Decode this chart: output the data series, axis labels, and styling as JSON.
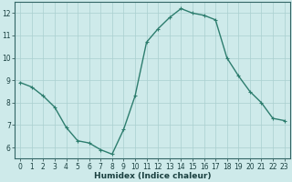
{
  "x": [
    0,
    1,
    2,
    3,
    4,
    5,
    6,
    7,
    8,
    9,
    10,
    11,
    12,
    13,
    14,
    15,
    16,
    17,
    18,
    19,
    20,
    21,
    22,
    23
  ],
  "y": [
    8.9,
    8.7,
    8.3,
    7.8,
    6.9,
    6.3,
    6.2,
    5.9,
    5.7,
    6.8,
    8.3,
    10.7,
    11.3,
    11.8,
    12.2,
    12.0,
    11.9,
    11.7,
    10.0,
    9.2,
    8.5,
    8.0,
    7.3,
    7.2
  ],
  "xlabel": "Humidex (Indice chaleur)",
  "xlim": [
    -0.5,
    23.5
  ],
  "ylim": [
    5.5,
    12.5
  ],
  "yticks": [
    6,
    7,
    8,
    9,
    10,
    11,
    12
  ],
  "xticks": [
    0,
    1,
    2,
    3,
    4,
    5,
    6,
    7,
    8,
    9,
    10,
    11,
    12,
    13,
    14,
    15,
    16,
    17,
    18,
    19,
    20,
    21,
    22,
    23
  ],
  "line_color": "#2d7d6e",
  "marker": "+",
  "bg_color": "#ceeaea",
  "grid_color": "#aacfcf",
  "axis_color": "#336666",
  "label_color": "#1a4040",
  "tick_fontsize": 5.5,
  "xlabel_fontsize": 6.5,
  "marker_size": 3.5,
  "linewidth": 1.0
}
